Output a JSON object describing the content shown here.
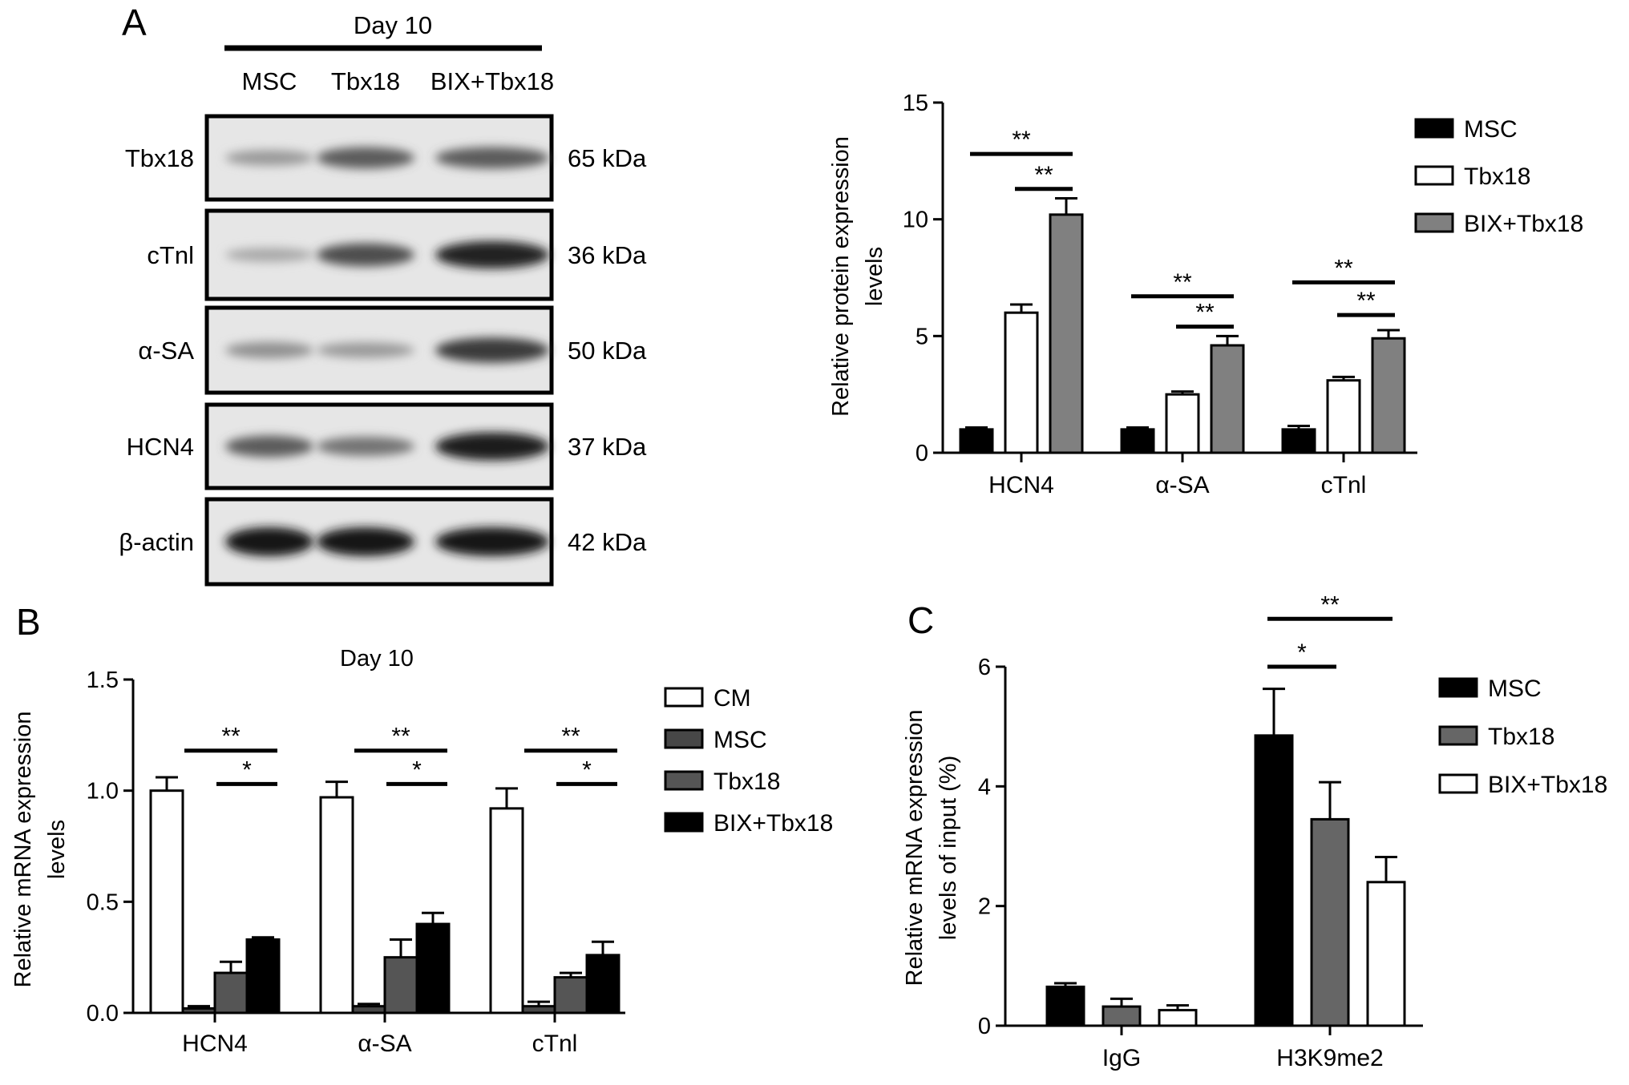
{
  "panels": {
    "a": {
      "letter": "A",
      "blot": {
        "header": "Day 10",
        "lanes": [
          "MSC",
          "Tbx18",
          "BIX+Tbx18"
        ],
        "rows": [
          {
            "label": "Tbx18",
            "kda": "65 kDa",
            "intensity": [
              0.3,
              0.62,
              0.62
            ]
          },
          {
            "label": "cTnl",
            "kda": "36 kDa",
            "intensity": [
              0.22,
              0.7,
              0.92
            ]
          },
          {
            "label": "α-SA",
            "kda": "50 kDa",
            "intensity": [
              0.35,
              0.3,
              0.8
            ]
          },
          {
            "label": "HCN4",
            "kda": "37 kDa",
            "intensity": [
              0.62,
              0.5,
              0.95
            ]
          },
          {
            "label": "β-actin",
            "kda": "42 kDa",
            "intensity": [
              1.0,
              1.0,
              1.0
            ]
          }
        ]
      }
    },
    "b": {
      "letter": "B"
    },
    "c": {
      "letter": "C"
    }
  },
  "chart_data": [
    {
      "id": "a_bar",
      "type": "bar",
      "title": "",
      "xlabel": "",
      "ylabel": "Relative protein expression levels",
      "ylabel_lines": [
        "Relative protein expression",
        "levels"
      ],
      "ylim": [
        0,
        15
      ],
      "yticks": [
        "0",
        "5",
        "10",
        "15"
      ],
      "categories": [
        "HCN4",
        "α-SA",
        "cTnl"
      ],
      "legend_position": "top-right",
      "series": [
        {
          "name": "MSC",
          "color": "#000000",
          "values": [
            1.0,
            1.0,
            1.0
          ],
          "errors": [
            0.08,
            0.08,
            0.15
          ]
        },
        {
          "name": "Tbx18",
          "color": "#ffffff",
          "values": [
            6.0,
            2.5,
            3.1
          ],
          "errors": [
            0.35,
            0.12,
            0.15
          ]
        },
        {
          "name": "BIX+Tbx18",
          "color": "#808080",
          "values": [
            10.2,
            4.6,
            4.9
          ],
          "errors": [
            0.7,
            0.4,
            0.35
          ]
        }
      ],
      "significance": [
        {
          "cat": 0,
          "from": 0,
          "to": 2,
          "y": 12.8,
          "label": "**"
        },
        {
          "cat": 0,
          "from": 1,
          "to": 2,
          "y": 11.3,
          "label": "**"
        },
        {
          "cat": 1,
          "from": 0,
          "to": 2,
          "y": 6.7,
          "label": "**"
        },
        {
          "cat": 1,
          "from": 1,
          "to": 2,
          "y": 5.4,
          "label": "**"
        },
        {
          "cat": 2,
          "from": 0,
          "to": 2,
          "y": 7.3,
          "label": "**"
        },
        {
          "cat": 2,
          "from": 1,
          "to": 2,
          "y": 5.9,
          "label": "**"
        }
      ]
    },
    {
      "id": "b_bar",
      "type": "bar",
      "title": "Day 10",
      "xlabel": "",
      "ylabel": "Relative mRNA expression levels",
      "ylabel_lines": [
        "Relative mRNA expression",
        "levels"
      ],
      "ylim": [
        0,
        1.5
      ],
      "yticks": [
        "0.0",
        "0.5",
        "1.0",
        "1.5"
      ],
      "categories": [
        "HCN4",
        "α-SA",
        "cTnl"
      ],
      "legend_position": "top-right",
      "series": [
        {
          "name": "CM",
          "color": "#ffffff",
          "values": [
            1.0,
            0.97,
            0.92
          ],
          "errors": [
            0.06,
            0.07,
            0.09
          ]
        },
        {
          "name": "MSC",
          "color": "#474747",
          "values": [
            0.02,
            0.03,
            0.03
          ],
          "errors": [
            0.01,
            0.01,
            0.02
          ]
        },
        {
          "name": "Tbx18",
          "color": "#555555",
          "values": [
            0.18,
            0.25,
            0.16
          ],
          "errors": [
            0.05,
            0.08,
            0.02
          ]
        },
        {
          "name": "BIX+Tbx18",
          "color": "#000000",
          "values": [
            0.33,
            0.4,
            0.26
          ],
          "errors": [
            0.01,
            0.05,
            0.06
          ]
        }
      ],
      "significance": [
        {
          "cat": 0,
          "from": 1,
          "to": 3,
          "y": 1.18,
          "label": "**"
        },
        {
          "cat": 0,
          "from": 2,
          "to": 3,
          "y": 1.03,
          "label": "*"
        },
        {
          "cat": 1,
          "from": 1,
          "to": 3,
          "y": 1.18,
          "label": "**"
        },
        {
          "cat": 1,
          "from": 2,
          "to": 3,
          "y": 1.03,
          "label": "*"
        },
        {
          "cat": 2,
          "from": 1,
          "to": 3,
          "y": 1.18,
          "label": "**"
        },
        {
          "cat": 2,
          "from": 2,
          "to": 3,
          "y": 1.03,
          "label": "*"
        }
      ]
    },
    {
      "id": "c_bar",
      "type": "bar",
      "title": "",
      "xlabel": "",
      "ylabel": "Relative mRNA expression levels of input (%)",
      "ylabel_lines": [
        "Relative mRNA expression",
        "levels of input (%)"
      ],
      "ylim": [
        0,
        6
      ],
      "yticks": [
        "0",
        "2",
        "4",
        "6"
      ],
      "categories": [
        "IgG",
        "H3K9me2"
      ],
      "legend_position": "top-right",
      "series": [
        {
          "name": "MSC",
          "color": "#000000",
          "values": [
            0.65,
            4.85
          ],
          "errors": [
            0.06,
            0.78
          ]
        },
        {
          "name": "Tbx18",
          "color": "#666666",
          "values": [
            0.32,
            3.45
          ],
          "errors": [
            0.13,
            0.62
          ]
        },
        {
          "name": "BIX+Tbx18",
          "color": "#ffffff",
          "values": [
            0.26,
            2.4
          ],
          "errors": [
            0.08,
            0.42
          ]
        }
      ],
      "significance": [
        {
          "cat": 1,
          "from": 0,
          "to": 1,
          "y": 6.0,
          "label": "*"
        },
        {
          "cat": 1,
          "from": 0,
          "to": 2,
          "y": 6.8,
          "label": "**"
        }
      ]
    }
  ]
}
